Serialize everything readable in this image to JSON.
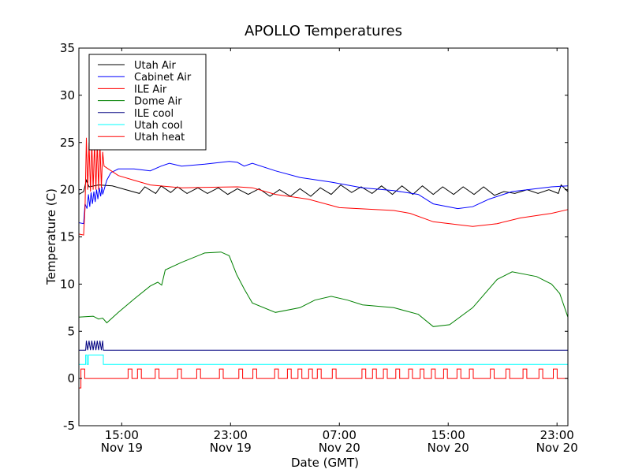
{
  "chart_data": {
    "type": "line",
    "title": "APOLLO Temperatures",
    "xlabel": "Date (GMT)",
    "ylabel": "Temperature (C)",
    "x_units": "hours since Nov 19 00:00 GMT",
    "xlim": [
      11.85,
      47.8
    ],
    "ylim": [
      -5,
      35
    ],
    "yticks": [
      -5,
      0,
      5,
      10,
      15,
      20,
      25,
      30,
      35
    ],
    "ytick_labels": [
      "-5",
      "0",
      "5",
      "10",
      "15",
      "20",
      "25",
      "30",
      "35"
    ],
    "xticks": [
      {
        "value": 15,
        "time": "15:00",
        "date": "Nov 19"
      },
      {
        "value": 23,
        "time": "23:00",
        "date": "Nov 19"
      },
      {
        "value": 31,
        "time": "07:00",
        "date": "Nov 20"
      },
      {
        "value": 39,
        "time": "15:00",
        "date": "Nov 20"
      },
      {
        "value": 47,
        "time": "23:00",
        "date": "Nov 20"
      }
    ],
    "grid": false,
    "legend_position": "top-left",
    "series": [
      {
        "name": "Utah Air",
        "color": "#000000",
        "points": [
          [
            11.85,
            19.5
          ],
          [
            12.2,
            19.8
          ],
          [
            12.4,
            21
          ],
          [
            12.6,
            20.3
          ],
          [
            13.3,
            20.5
          ],
          [
            14.3,
            20.4
          ],
          [
            15.3,
            20.0
          ],
          [
            16.3,
            19.6
          ],
          [
            16.7,
            20.3
          ],
          [
            17.5,
            19.6
          ],
          [
            17.9,
            20.4
          ],
          [
            18.6,
            19.7
          ],
          [
            19.1,
            20.3
          ],
          [
            19.8,
            19.6
          ],
          [
            20.6,
            20.2
          ],
          [
            21.3,
            19.6
          ],
          [
            22.1,
            20.2
          ],
          [
            22.8,
            19.5
          ],
          [
            23.5,
            20.1
          ],
          [
            24.3,
            19.5
          ],
          [
            25.1,
            20.1
          ],
          [
            25.9,
            19.3
          ],
          [
            26.6,
            20.0
          ],
          [
            27.4,
            19.3
          ],
          [
            28.1,
            20.1
          ],
          [
            28.9,
            19.3
          ],
          [
            29.6,
            20.2
          ],
          [
            30.4,
            19.5
          ],
          [
            31.1,
            20.5
          ],
          [
            31.9,
            19.7
          ],
          [
            32.6,
            20.3
          ],
          [
            33.4,
            19.6
          ],
          [
            34.1,
            20.4
          ],
          [
            34.9,
            19.5
          ],
          [
            35.6,
            20.4
          ],
          [
            36.4,
            19.5
          ],
          [
            37.1,
            20.4
          ],
          [
            37.9,
            19.5
          ],
          [
            38.6,
            20.3
          ],
          [
            39.4,
            19.5
          ],
          [
            40.1,
            20.3
          ],
          [
            40.9,
            19.5
          ],
          [
            41.6,
            20.3
          ],
          [
            42.4,
            19.4
          ],
          [
            43.1,
            19.8
          ],
          [
            43.9,
            19.6
          ],
          [
            44.8,
            20.0
          ],
          [
            45.6,
            19.6
          ],
          [
            46.4,
            20.0
          ],
          [
            47.1,
            19.6
          ],
          [
            47.3,
            20.5
          ],
          [
            47.8,
            19.8
          ]
        ]
      },
      {
        "name": "Cabinet Air",
        "color": "#0000ff",
        "points": [
          [
            11.85,
            16.5
          ],
          [
            12.2,
            16.4
          ],
          [
            12.3,
            18.5
          ],
          [
            12.45,
            18
          ],
          [
            12.55,
            19.5
          ],
          [
            12.65,
            18.2
          ],
          [
            12.75,
            19.7
          ],
          [
            12.85,
            18.5
          ],
          [
            12.95,
            19.8
          ],
          [
            13.05,
            18.7
          ],
          [
            13.15,
            20
          ],
          [
            13.25,
            19
          ],
          [
            13.35,
            20.2
          ],
          [
            13.45,
            19.3
          ],
          [
            13.55,
            20.3
          ],
          [
            13.6,
            19.5
          ],
          [
            13.9,
            21
          ],
          [
            14.2,
            21.8
          ],
          [
            14.75,
            22.2
          ],
          [
            15.9,
            22.2
          ],
          [
            17.1,
            22.0
          ],
          [
            17.9,
            22.5
          ],
          [
            18.5,
            22.8
          ],
          [
            19.4,
            22.5
          ],
          [
            21.1,
            22.7
          ],
          [
            22.9,
            23.0
          ],
          [
            23.5,
            22.9
          ],
          [
            24.0,
            22.5
          ],
          [
            24.6,
            22.8
          ],
          [
            26.3,
            22.0
          ],
          [
            28.1,
            21.3
          ],
          [
            30.4,
            20.8
          ],
          [
            32.7,
            20.2
          ],
          [
            35.0,
            19.9
          ],
          [
            36.8,
            19.5
          ],
          [
            37.9,
            18.5
          ],
          [
            39.7,
            18.0
          ],
          [
            40.8,
            18.2
          ],
          [
            42.0,
            19.0
          ],
          [
            43.7,
            19.8
          ],
          [
            46.6,
            20.3
          ],
          [
            47.8,
            20.4
          ]
        ]
      },
      {
        "name": "ILE Air",
        "color": "#ff0000",
        "points": [
          [
            11.85,
            15.3
          ],
          [
            12.2,
            15.2
          ],
          [
            12.3,
            18
          ],
          [
            12.4,
            25.5
          ],
          [
            12.5,
            20
          ],
          [
            12.6,
            25
          ],
          [
            12.7,
            19.8
          ],
          [
            12.8,
            25
          ],
          [
            12.9,
            20
          ],
          [
            13.0,
            25
          ],
          [
            13.1,
            20
          ],
          [
            13.2,
            25
          ],
          [
            13.3,
            20
          ],
          [
            13.4,
            25
          ],
          [
            13.5,
            20.2
          ],
          [
            13.6,
            24
          ],
          [
            13.7,
            22.5
          ],
          [
            14.75,
            21.5
          ],
          [
            15.9,
            21.0
          ],
          [
            17.1,
            20.5
          ],
          [
            19.4,
            20.2
          ],
          [
            23.5,
            20.3
          ],
          [
            24.6,
            20.2
          ],
          [
            26.3,
            19.5
          ],
          [
            28.7,
            19.0
          ],
          [
            31.0,
            18.1
          ],
          [
            35.0,
            17.8
          ],
          [
            36.2,
            17.5
          ],
          [
            37.9,
            16.6
          ],
          [
            40.8,
            16.1
          ],
          [
            42.6,
            16.4
          ],
          [
            44.3,
            17.0
          ],
          [
            46.6,
            17.5
          ],
          [
            47.8,
            17.9
          ]
        ]
      },
      {
        "name": "Dome Air",
        "color": "#008000",
        "points": [
          [
            11.85,
            6.5
          ],
          [
            12.9,
            6.6
          ],
          [
            13.3,
            6.3
          ],
          [
            13.6,
            6.4
          ],
          [
            13.9,
            5.9
          ],
          [
            14.75,
            7.0
          ],
          [
            15.9,
            8.4
          ],
          [
            17.1,
            9.8
          ],
          [
            17.65,
            10.2
          ],
          [
            17.94,
            9.9
          ],
          [
            18.2,
            11.5
          ],
          [
            19.4,
            12.3
          ],
          [
            21.1,
            13.3
          ],
          [
            22.3,
            13.4
          ],
          [
            22.9,
            13.0
          ],
          [
            23.45,
            11.0
          ],
          [
            24.0,
            9.5
          ],
          [
            24.6,
            8.0
          ],
          [
            26.3,
            7.0
          ],
          [
            28.1,
            7.5
          ],
          [
            29.2,
            8.3
          ],
          [
            30.4,
            8.7
          ],
          [
            31.6,
            8.3
          ],
          [
            32.7,
            7.8
          ],
          [
            35.0,
            7.5
          ],
          [
            36.8,
            6.8
          ],
          [
            37.9,
            5.5
          ],
          [
            39.1,
            5.7
          ],
          [
            40.8,
            7.5
          ],
          [
            42.6,
            10.5
          ],
          [
            43.7,
            11.3
          ],
          [
            45.5,
            10.8
          ],
          [
            46.6,
            10.0
          ],
          [
            47.2,
            9.0
          ],
          [
            47.8,
            6.5
          ]
        ]
      },
      {
        "name": "ILE cool",
        "color": "#000080",
        "points": [
          [
            11.85,
            3
          ],
          [
            12.35,
            3
          ],
          [
            12.4,
            4
          ],
          [
            12.5,
            3
          ],
          [
            12.6,
            4
          ],
          [
            12.7,
            3
          ],
          [
            12.8,
            4
          ],
          [
            12.9,
            3
          ],
          [
            13.0,
            4
          ],
          [
            13.1,
            3
          ],
          [
            13.2,
            4
          ],
          [
            13.3,
            3
          ],
          [
            13.4,
            4
          ],
          [
            13.5,
            3
          ],
          [
            13.6,
            4
          ],
          [
            13.65,
            3
          ],
          [
            47.8,
            3
          ]
        ]
      },
      {
        "name": "Utah cool",
        "color": "#00ffff",
        "points": [
          [
            11.85,
            1.5
          ],
          [
            12.35,
            1.5
          ],
          [
            12.35,
            2.5
          ],
          [
            12.45,
            2.5
          ],
          [
            12.45,
            1.5
          ],
          [
            12.55,
            1.5
          ],
          [
            12.55,
            2.5
          ],
          [
            13.65,
            2.5
          ],
          [
            13.65,
            1.5
          ],
          [
            47.8,
            1.5
          ]
        ]
      },
      {
        "name": "Utah heat",
        "color": "#ff0000",
        "baseline": 0,
        "pulse_high": 1,
        "pulse_width_hours": 0.28,
        "initial_dip": {
          "value": -1,
          "from": 11.85,
          "to": 12.0
        },
        "pulse_starts": [
          12.0,
          15.47,
          16.16,
          17.46,
          19.11,
          20.51,
          22.18,
          23.61,
          24.64,
          26.24,
          27.18,
          27.96,
          28.74,
          29.38,
          30.48,
          32.66,
          33.44,
          34.24,
          35.15,
          36.09,
          36.94,
          37.77,
          38.66,
          39.65,
          40.56,
          42.1,
          43.24,
          44.5,
          45.67,
          46.73
        ]
      }
    ]
  }
}
